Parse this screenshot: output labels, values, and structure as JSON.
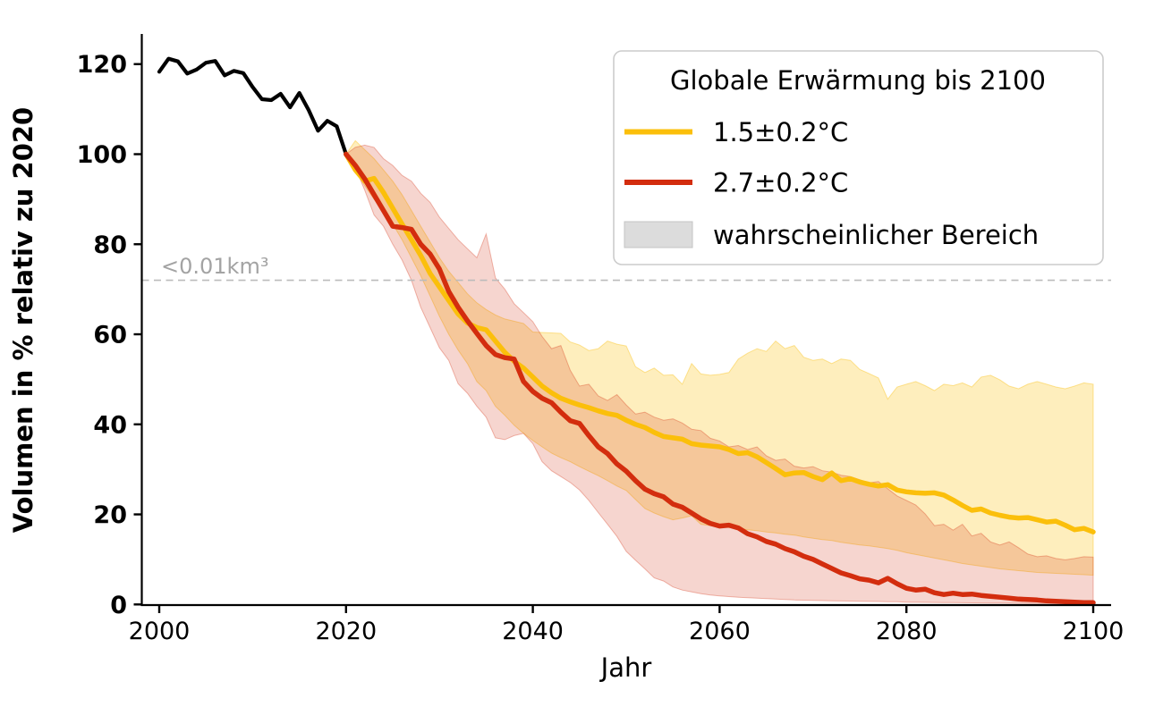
{
  "chart_data": {
    "type": "line",
    "title": "",
    "xlabel": "Jahr",
    "ylabel": "Volumen in % relativ zu 2020",
    "xlim": [
      1998,
      2102
    ],
    "ylim": [
      0,
      126.8
    ],
    "grid": false,
    "x_ticks": [
      2000,
      2020,
      2040,
      2060,
      2080,
      2100
    ],
    "y_ticks": [
      0,
      20,
      40,
      60,
      80,
      100,
      120
    ],
    "threshold": {
      "label": "<0.01km³",
      "value": 72,
      "line_color": "#bbbbbb",
      "label_color": "#a3a3a3"
    },
    "historical": {
      "color": "#000000",
      "start_year": 2000,
      "values": [
        118.3,
        121.2,
        120.6,
        117.9,
        118.8,
        120.3,
        120.7,
        117.5,
        118.5,
        118.0,
        114.9,
        112.2,
        112.0,
        113.4,
        110.4,
        113.6,
        109.8,
        105.2,
        107.4,
        106.2,
        100.0
      ]
    },
    "series": [
      {
        "name": "1.5±0.2°C",
        "color": "#FBBF0B",
        "band_opacity": 0.27,
        "start_year": 2020,
        "median": [
          100,
          96.5,
          94.0,
          94.6,
          91.5,
          88.0,
          84.5,
          81.0,
          77.5,
          73.5,
          70.5,
          67.5,
          64.5,
          62.5,
          61.5,
          61.0,
          58.5,
          56.0,
          54.0,
          52.5,
          50.5,
          48.5,
          47.0,
          45.8,
          45.0,
          44.3,
          43.7,
          43.0,
          42.4,
          42.0,
          40.9,
          40.0,
          39.3,
          38.2,
          37.3,
          37.0,
          36.7,
          35.7,
          35.4,
          35.2,
          35.0,
          34.4,
          33.5,
          33.7,
          32.8,
          31.5,
          30.2,
          28.8,
          29.2,
          29.3,
          28.4,
          27.7,
          29.2,
          27.5,
          27.9,
          27.2,
          26.7,
          26.3,
          26.6,
          25.4,
          25.0,
          24.8,
          24.7,
          24.8,
          24.3,
          23.2,
          22.0,
          20.9,
          21.2,
          20.3,
          19.8,
          19.4,
          19.2,
          19.3,
          18.8,
          18.3,
          18.5,
          17.6,
          16.6,
          16.9,
          16.1
        ],
        "upper": [
          100,
          103.0,
          101.0,
          99.0,
          96.5,
          94.0,
          91.0,
          87.5,
          84.0,
          80.5,
          77.0,
          74.0,
          71.5,
          69.0,
          67.0,
          65.5,
          64.3,
          63.4,
          62.9,
          62.4,
          60.5,
          60.4,
          60.3,
          60.2,
          58.3,
          57.6,
          56.4,
          56.8,
          58.5,
          57.8,
          57.4,
          52.8,
          51.5,
          52.5,
          50.9,
          51.0,
          48.9,
          53.5,
          51.2,
          50.9,
          51.1,
          51.5,
          54.5,
          55.8,
          56.8,
          56.2,
          58.5,
          56.8,
          57.5,
          54.9,
          54.2,
          54.5,
          53.5,
          54.5,
          54.2,
          52.2,
          51.3,
          50.3,
          45.6,
          48.3,
          48.9,
          49.5,
          48.6,
          47.5,
          48.9,
          48.6,
          49.2,
          48.3,
          50.5,
          50.9,
          49.9,
          48.5,
          47.9,
          48.9,
          49.5,
          48.9,
          48.3,
          47.9,
          48.5,
          49.2,
          48.9
        ],
        "lower": [
          100,
          96.5,
          93.0,
          90.0,
          87.5,
          84.5,
          81.0,
          77.0,
          73.0,
          68.5,
          64.0,
          60.0,
          56.5,
          53.5,
          49.5,
          47.5,
          44.0,
          42.0,
          39.8,
          38.0,
          36.4,
          35.0,
          33.6,
          32.6,
          31.7,
          30.6,
          29.6,
          28.6,
          27.5,
          26.3,
          25.3,
          23.3,
          21.3,
          20.3,
          19.5,
          18.8,
          19.2,
          19.7,
          17.8,
          17.5,
          17.3,
          17.1,
          16.9,
          16.6,
          16.4,
          16.1,
          15.9,
          15.6,
          15.4,
          15.0,
          14.7,
          14.4,
          14.2,
          13.8,
          13.5,
          13.2,
          13.0,
          12.7,
          12.4,
          12.0,
          11.5,
          11.1,
          10.7,
          10.3,
          9.9,
          9.5,
          9.1,
          8.8,
          8.5,
          8.2,
          7.9,
          7.7,
          7.5,
          7.3,
          7.1,
          7.0,
          6.9,
          6.8,
          6.7,
          6.6,
          6.5
        ]
      },
      {
        "name": "2.7±0.2°C",
        "color": "#D32D0E",
        "band_opacity": 0.2,
        "start_year": 2020,
        "median": [
          100,
          97.5,
          94.5,
          91.0,
          87.5,
          84.0,
          83.7,
          83.3,
          80.0,
          77.8,
          74.5,
          69.5,
          66.0,
          63.0,
          60.2,
          57.5,
          55.5,
          54.8,
          54.5,
          49.5,
          47.3,
          45.8,
          44.8,
          42.7,
          40.8,
          40.2,
          37.5,
          35.0,
          33.5,
          31.2,
          29.6,
          27.5,
          25.6,
          24.6,
          23.9,
          22.3,
          21.6,
          20.3,
          19.0,
          18.0,
          17.4,
          17.6,
          17.0,
          15.7,
          15.0,
          14.0,
          13.4,
          12.4,
          11.7,
          10.7,
          10.0,
          9.0,
          8.0,
          7.0,
          6.4,
          5.7,
          5.4,
          4.8,
          5.8,
          4.6,
          3.6,
          3.2,
          3.4,
          2.6,
          2.2,
          2.5,
          2.2,
          2.3,
          2.0,
          1.8,
          1.6,
          1.4,
          1.2,
          1.1,
          1.0,
          0.8,
          0.7,
          0.6,
          0.5,
          0.4,
          0.4
        ],
        "upper": [
          100,
          101.5,
          102.0,
          101.5,
          99.0,
          97.5,
          95.3,
          94.0,
          91.3,
          89.3,
          86.0,
          83.5,
          81.0,
          79.0,
          77.0,
          82.3,
          72.5,
          70.0,
          66.8,
          64.8,
          62.8,
          59.5,
          56.8,
          57.5,
          52.0,
          48.5,
          48.9,
          46.3,
          45.3,
          46.6,
          44.3,
          42.3,
          42.7,
          41.6,
          40.9,
          41.2,
          40.3,
          38.9,
          38.6,
          36.9,
          36.3,
          35.0,
          35.3,
          34.4,
          35.0,
          33.0,
          32.0,
          32.3,
          30.7,
          30.3,
          30.6,
          29.7,
          29.4,
          28.7,
          28.4,
          27.7,
          27.0,
          27.3,
          25.7,
          24.1,
          23.1,
          22.1,
          20.1,
          17.5,
          17.8,
          16.5,
          17.8,
          15.2,
          15.8,
          13.9,
          13.2,
          13.9,
          12.6,
          11.2,
          10.6,
          10.8,
          10.2,
          9.9,
          10.2,
          10.6,
          10.5
        ],
        "lower": [
          100,
          97.0,
          92.0,
          86.5,
          84.0,
          80.0,
          76.5,
          72.0,
          66.0,
          61.5,
          57.0,
          54.2,
          49.0,
          46.9,
          44.0,
          41.6,
          37.0,
          36.6,
          37.5,
          38.0,
          35.7,
          31.7,
          29.7,
          28.4,
          27.1,
          25.4,
          23.1,
          20.4,
          17.8,
          15.1,
          11.8,
          9.8,
          7.9,
          5.9,
          5.2,
          3.9,
          3.2,
          2.8,
          2.4,
          2.1,
          1.9,
          1.75,
          1.6,
          1.5,
          1.4,
          1.3,
          1.2,
          1.1,
          1.0,
          0.95,
          0.9,
          0.85,
          0.8,
          0.78,
          0.75,
          0.7,
          0.68,
          0.65,
          0.62,
          0.6,
          0.5,
          0.48,
          0.45,
          0.43,
          0.4,
          0.4,
          0.38,
          0.35,
          0.33,
          0.3,
          0.3,
          0.28,
          0.26,
          0.24,
          0.22,
          0.2,
          0.19,
          0.18,
          0.17,
          0.16,
          0.15
        ]
      }
    ],
    "legend": {
      "title": "Globale Erwärmung bis 2100",
      "position": "upper right",
      "entries": [
        {
          "label": "1.5±0.2°C",
          "swatch": "line",
          "color": "#FBBF0B"
        },
        {
          "label": "2.7±0.2°C",
          "swatch": "line",
          "color": "#D32D0E"
        },
        {
          "label": "wahrscheinlicher Bereich",
          "swatch": "patch",
          "color": "#DCDCDC"
        }
      ]
    }
  }
}
